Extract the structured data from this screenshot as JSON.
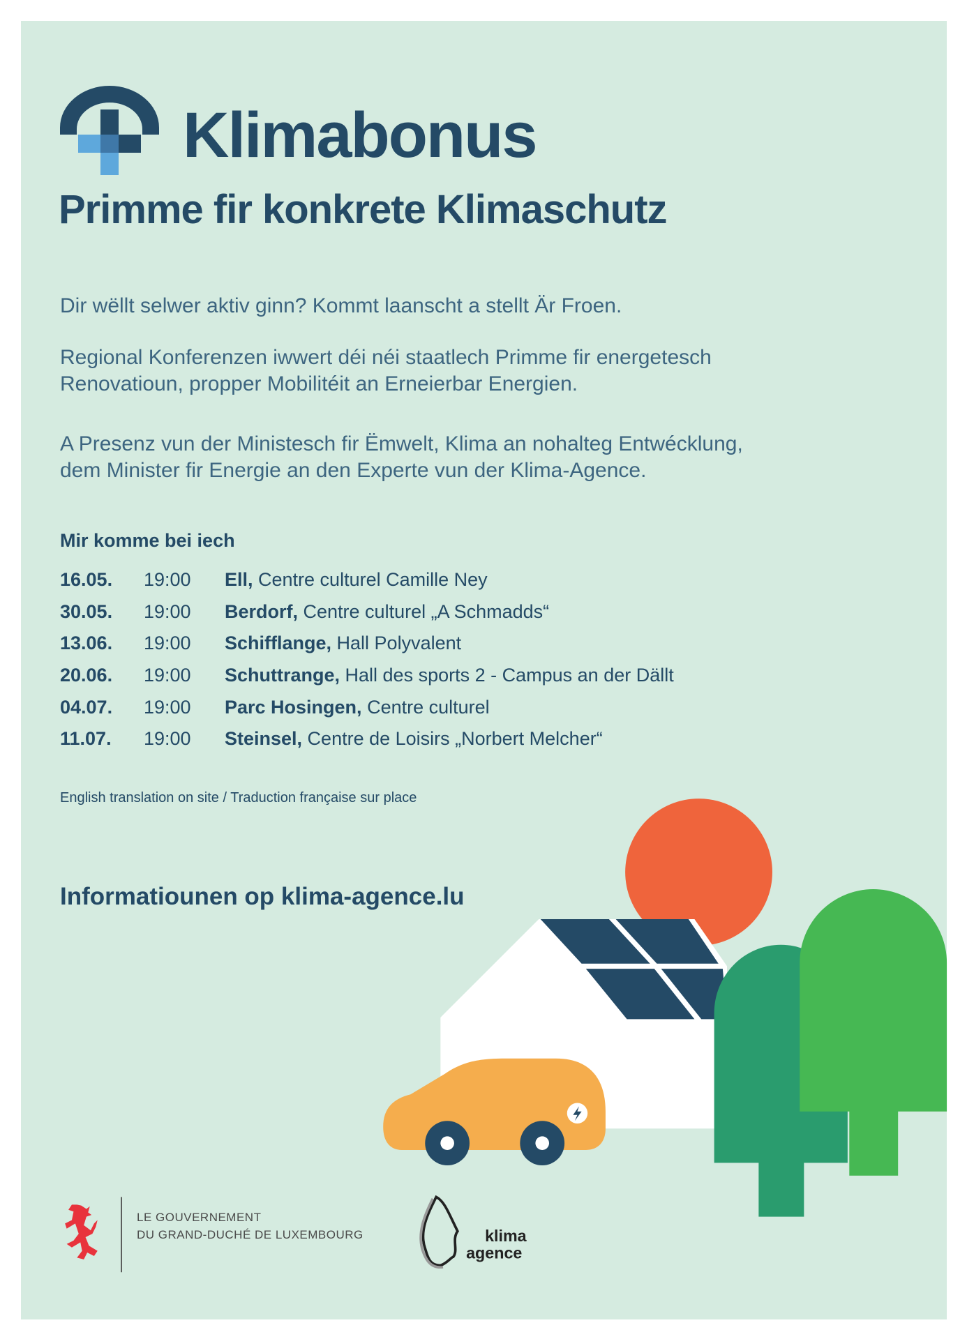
{
  "header": {
    "brand": "Klimabonus",
    "subtitle": "Primme fir konkrete Klimaschutz"
  },
  "intro": {
    "p1": "Dir wëllt selwer aktiv ginn? Kommt laanscht a stellt Är Froen.",
    "p2_line1": "Regional Konferenzen iwwert déi néi staatlech Primme fir energetesch",
    "p2_line2": "Renovatioun, propper Mobilitéit an Erneierbar Energien.",
    "p3_line1": "A Presenz vun der Ministesch fir Ëmwelt, Klima an nohalteg Entwécklung,",
    "p3_line2": "dem Minister fir Energie an den Experte vun der Klima-Agence."
  },
  "schedule": {
    "title": "Mir komme bei iech",
    "rows": [
      {
        "date": "16.05.",
        "time": "19:00",
        "town": "Ell,",
        "venue": " Centre culturel Camille Ney"
      },
      {
        "date": "30.05.",
        "time": "19:00",
        "town": "Berdorf,",
        "venue": " Centre culturel „A Schmadds“"
      },
      {
        "date": "13.06.",
        "time": "19:00",
        "town": "Schifflange,",
        "venue": " Hall Polyvalent"
      },
      {
        "date": "20.06.",
        "time": "19:00",
        "town": "Schuttrange,",
        "venue": " Hall des sports 2 - Campus an der Dällt"
      },
      {
        "date": "04.07.",
        "time": "19:00",
        "town": "Parc Hosingen,",
        "venue": " Centre culturel"
      },
      {
        "date": "11.07.",
        "time": "19:00",
        "town": "Steinsel,",
        "venue": " Centre de Loisirs „Norbert Melcher“"
      }
    ],
    "note": "English translation on site / Traduction française sur place"
  },
  "info": "Informatiounen op klima-agence.lu",
  "footer": {
    "gov_line1": "LE GOUVERNEMENT",
    "gov_line2": "DU GRAND-DUCHÉ DE LUXEMBOURG",
    "agency_logo_text": "klima agence"
  },
  "colors": {
    "background": "#d5ebe0",
    "navy": "#244a66",
    "light_blue": "#5ea8dc",
    "sun": "#ef643c",
    "dark_green": "#2a9c6e",
    "light_green": "#46b853",
    "car": "#f5ad4d",
    "lion_red": "#e8333c"
  }
}
